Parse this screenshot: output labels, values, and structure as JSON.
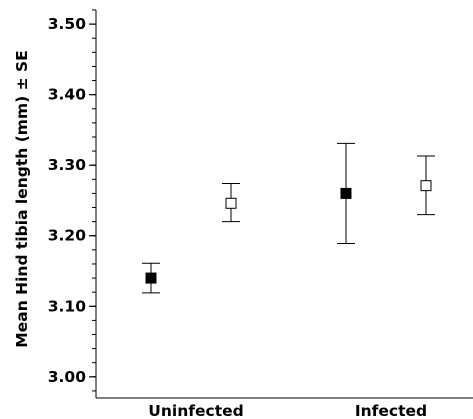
{
  "chart_data": {
    "type": "scatter",
    "title": "",
    "xlabel": "",
    "ylabel": "Mean Hind tibia length (mm) ± SE",
    "categories": [
      "Uninfected",
      "Infected"
    ],
    "ylim": [
      2.97,
      3.52
    ],
    "yticks": [
      3.0,
      3.1,
      3.2,
      3.3,
      3.4,
      3.5
    ],
    "ytick_labels": [
      "3.00",
      "3.10",
      "3.20",
      "3.30",
      "3.40",
      "3.50"
    ],
    "minor_tick_step": 0.02,
    "grid": false,
    "legend": "none",
    "series": [
      {
        "marker": "filled-square",
        "color": "#000000",
        "points": [
          {
            "category": "Uninfected",
            "mean": 3.14,
            "lower": 3.119,
            "upper": 3.161
          },
          {
            "category": "Infected",
            "mean": 3.26,
            "lower": 3.189,
            "upper": 3.331
          }
        ]
      },
      {
        "marker": "open-square",
        "color": "#000000",
        "points": [
          {
            "category": "Uninfected",
            "mean": 3.246,
            "lower": 3.22,
            "upper": 3.274
          },
          {
            "category": "Infected",
            "mean": 3.271,
            "lower": 3.23,
            "upper": 3.313
          }
        ]
      }
    ]
  }
}
